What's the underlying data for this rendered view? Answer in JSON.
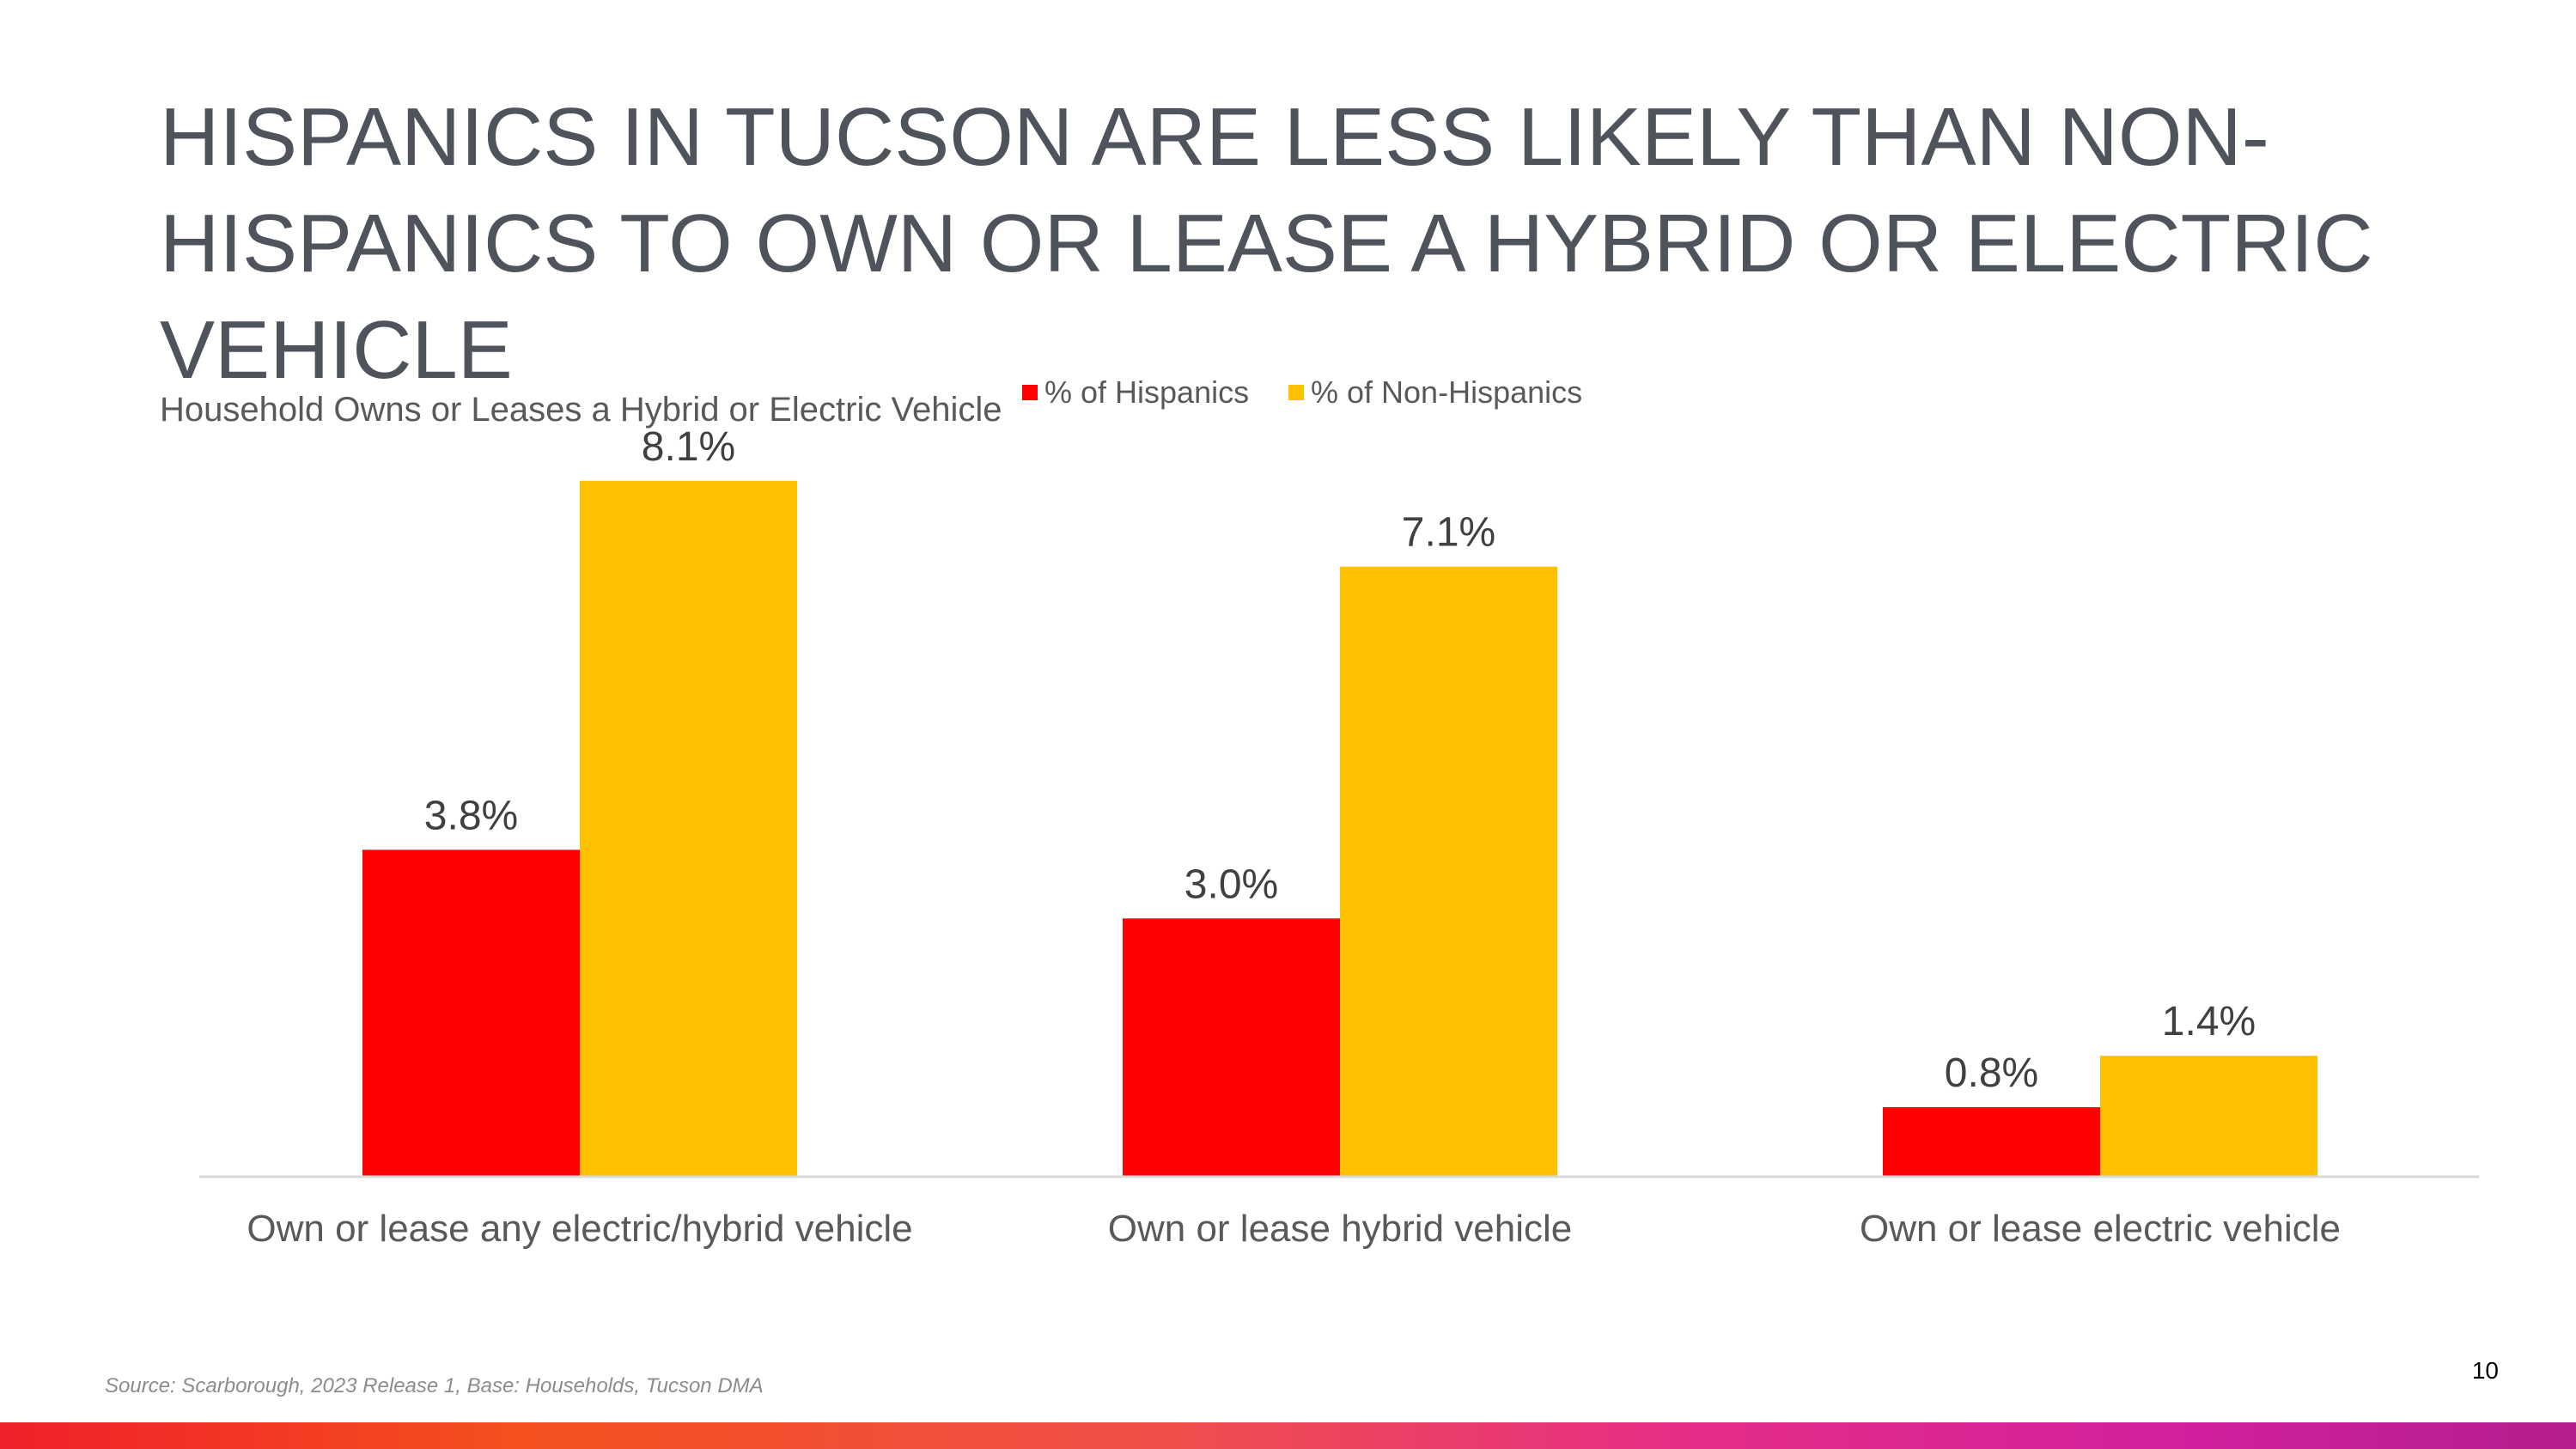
{
  "slide": {
    "title": "HISPANICS IN TUCSON ARE LESS LIKELY THAN NON-HISPANICS TO OWN OR LEASE A HYBRID OR ELECTRIC VEHICLE",
    "source": "Source: Scarborough, 2023 Release 1, Base: Households, Tucson DMA",
    "page_number": "10"
  },
  "colors": {
    "hispanics": "#ff0000",
    "non_hispanics": "#ffc000",
    "axis": "#d9d9d9",
    "label_text": "#404040",
    "category_text": "#595959"
  },
  "chart_data": {
    "type": "bar",
    "title": "Household Owns or Leases a Hybrid or Electric Vehicle",
    "categories": [
      "Own or lease any electric/hybrid vehicle",
      "Own or lease hybrid vehicle",
      "Own or lease electric vehicle"
    ],
    "series": [
      {
        "name": "% of Hispanics",
        "values": [
          3.8,
          3.0,
          0.8
        ],
        "labels": [
          "3.8%",
          "3.0%",
          "0.8%"
        ]
      },
      {
        "name": "% of Non-Hispanics",
        "values": [
          8.1,
          7.1,
          1.4
        ],
        "labels": [
          "8.1%",
          "7.1%",
          "1.4%"
        ]
      }
    ],
    "xlabel": "",
    "ylabel": "",
    "ylim": [
      0,
      8.5
    ],
    "grid": false,
    "legend": "top"
  }
}
